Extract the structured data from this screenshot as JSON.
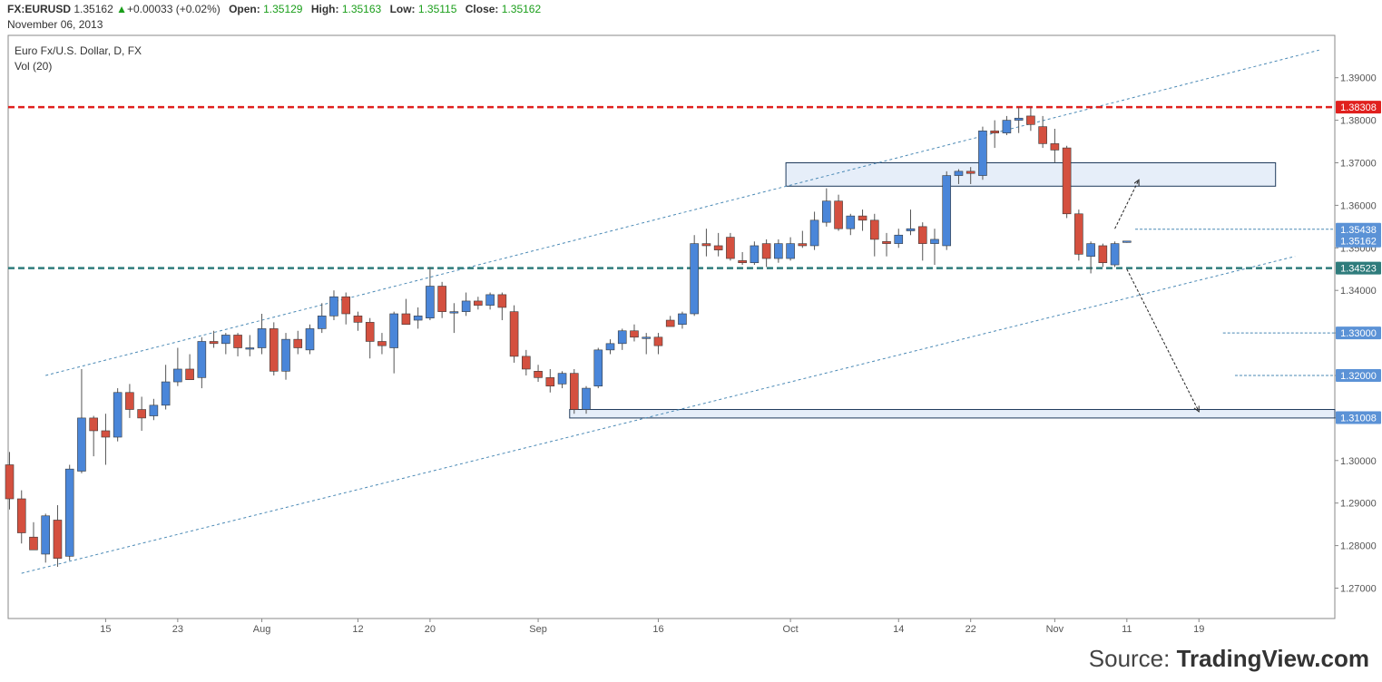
{
  "header": {
    "symbol": "FX:EURUSD",
    "last": "1.35162",
    "change": "+0.00033 (+0.02%)",
    "open_label": "Open:",
    "open": "1.35129",
    "high_label": "High:",
    "high": "1.35163",
    "low_label": "Low:",
    "low": "1.35115",
    "close_label": "Close:",
    "close": "1.35162",
    "date": "November 06, 2013"
  },
  "pane": {
    "title": "Euro Fx/U.S. Dollar, D, FX",
    "indicator": "Vol (20)"
  },
  "source": {
    "prefix": "Source: ",
    "brand": "TradingView.com"
  },
  "colors": {
    "up": "#4a86d9",
    "down": "#d4503f",
    "resistance": "#e0201e",
    "support": "#2f7c7c",
    "channel": "#4a89b5",
    "zone_fill": "#e6eef9",
    "zone_stroke": "#1f3a5c",
    "tag_blue": "#5b92d6"
  },
  "chart_data": {
    "type": "candlestick",
    "title": "Euro Fx/U.S. Dollar, D, FX",
    "ylim": [
      1.262,
      1.397
    ],
    "y_ticks": [
      "1.27000",
      "1.28000",
      "1.29000",
      "1.30000",
      "1.31000",
      "1.32000",
      "1.33000",
      "1.34000",
      "1.35000",
      "1.36000",
      "1.37000",
      "1.38000",
      "1.39000"
    ],
    "x_ticks": [
      {
        "label": "15",
        "i": 8
      },
      {
        "label": "23",
        "i": 14
      },
      {
        "label": "Aug",
        "i": 21
      },
      {
        "label": "12",
        "i": 29
      },
      {
        "label": "20",
        "i": 35
      },
      {
        "label": "Sep",
        "i": 44
      },
      {
        "label": "16",
        "i": 54
      },
      {
        "label": "Oct",
        "i": 65
      },
      {
        "label": "14",
        "i": 74
      },
      {
        "label": "22",
        "i": 80
      },
      {
        "label": "Nov",
        "i": 87
      },
      {
        "label": "11",
        "i": 93
      },
      {
        "label": "19",
        "i": 99
      }
    ],
    "candles": [
      [
        1.299,
        1.302,
        1.2885,
        1.291
      ],
      [
        1.291,
        1.293,
        1.2805,
        1.283
      ],
      [
        1.282,
        1.2855,
        1.28,
        1.279
      ],
      [
        1.278,
        1.2875,
        1.276,
        1.287
      ],
      [
        1.286,
        1.2895,
        1.275,
        1.277
      ],
      [
        1.2775,
        1.299,
        1.2765,
        1.298
      ],
      [
        1.2975,
        1.3215,
        1.297,
        1.31
      ],
      [
        1.31,
        1.3105,
        1.301,
        1.307
      ],
      [
        1.307,
        1.311,
        1.299,
        1.3055
      ],
      [
        1.3055,
        1.317,
        1.3045,
        1.316
      ],
      [
        1.316,
        1.318,
        1.31,
        1.312
      ],
      [
        1.312,
        1.315,
        1.307,
        1.31
      ],
      [
        1.3105,
        1.3145,
        1.3095,
        1.313
      ],
      [
        1.313,
        1.3225,
        1.312,
        1.3185
      ],
      [
        1.3185,
        1.3265,
        1.3175,
        1.3215
      ],
      [
        1.3215,
        1.325,
        1.32,
        1.319
      ],
      [
        1.3195,
        1.329,
        1.317,
        1.328
      ],
      [
        1.328,
        1.3305,
        1.3265,
        1.3275
      ],
      [
        1.3275,
        1.33,
        1.325,
        1.3295
      ],
      [
        1.3295,
        1.33,
        1.3245,
        1.3265
      ],
      [
        1.3265,
        1.3295,
        1.3245,
        1.3265
      ],
      [
        1.3265,
        1.3345,
        1.325,
        1.331
      ],
      [
        1.331,
        1.3325,
        1.32,
        1.321
      ],
      [
        1.321,
        1.33,
        1.319,
        1.3285
      ],
      [
        1.3285,
        1.3305,
        1.325,
        1.3265
      ],
      [
        1.326,
        1.332,
        1.325,
        1.331
      ],
      [
        1.331,
        1.337,
        1.33,
        1.334
      ],
      [
        1.334,
        1.34,
        1.333,
        1.3385
      ],
      [
        1.3385,
        1.3395,
        1.332,
        1.3345
      ],
      [
        1.334,
        1.335,
        1.3305,
        1.3325
      ],
      [
        1.3325,
        1.3335,
        1.324,
        1.328
      ],
      [
        1.328,
        1.33,
        1.325,
        1.327
      ],
      [
        1.3265,
        1.335,
        1.3205,
        1.3345
      ],
      [
        1.3345,
        1.338,
        1.3325,
        1.332
      ],
      [
        1.333,
        1.336,
        1.331,
        1.334
      ],
      [
        1.3335,
        1.3455,
        1.333,
        1.341
      ],
      [
        1.341,
        1.342,
        1.3335,
        1.335
      ],
      [
        1.335,
        1.337,
        1.33,
        1.335
      ],
      [
        1.335,
        1.3395,
        1.334,
        1.3375
      ],
      [
        1.3375,
        1.3385,
        1.3355,
        1.3365
      ],
      [
        1.3365,
        1.3395,
        1.3355,
        1.339
      ],
      [
        1.339,
        1.3395,
        1.333,
        1.336
      ],
      [
        1.335,
        1.3365,
        1.323,
        1.3245
      ],
      [
        1.3245,
        1.326,
        1.32,
        1.3215
      ],
      [
        1.321,
        1.3225,
        1.3185,
        1.3195
      ],
      [
        1.3195,
        1.3215,
        1.316,
        1.3175
      ],
      [
        1.318,
        1.321,
        1.317,
        1.3205
      ],
      [
        1.3205,
        1.3215,
        1.311,
        1.312
      ],
      [
        1.312,
        1.3175,
        1.311,
        1.317
      ],
      [
        1.3175,
        1.3265,
        1.317,
        1.326
      ],
      [
        1.326,
        1.3285,
        1.325,
        1.3275
      ],
      [
        1.3275,
        1.331,
        1.326,
        1.3305
      ],
      [
        1.3305,
        1.332,
        1.328,
        1.329
      ],
      [
        1.329,
        1.33,
        1.325,
        1.329
      ],
      [
        1.329,
        1.33,
        1.325,
        1.327
      ],
      [
        1.333,
        1.334,
        1.332,
        1.3315
      ],
      [
        1.332,
        1.335,
        1.331,
        1.3345
      ],
      [
        1.3345,
        1.353,
        1.334,
        1.351
      ],
      [
        1.351,
        1.3545,
        1.348,
        1.3505
      ],
      [
        1.3505,
        1.3535,
        1.348,
        1.3495
      ],
      [
        1.3525,
        1.3535,
        1.347,
        1.3475
      ],
      [
        1.347,
        1.349,
        1.346,
        1.3465
      ],
      [
        1.3465,
        1.3515,
        1.346,
        1.3505
      ],
      [
        1.351,
        1.352,
        1.3455,
        1.3475
      ],
      [
        1.3475,
        1.352,
        1.3465,
        1.351
      ],
      [
        1.3475,
        1.3525,
        1.347,
        1.351
      ],
      [
        1.351,
        1.354,
        1.35,
        1.3505
      ],
      [
        1.3505,
        1.3585,
        1.3495,
        1.3565
      ],
      [
        1.356,
        1.364,
        1.355,
        1.361
      ],
      [
        1.361,
        1.3625,
        1.354,
        1.3545
      ],
      [
        1.3545,
        1.358,
        1.353,
        1.3575
      ],
      [
        1.3575,
        1.359,
        1.354,
        1.3565
      ],
      [
        1.3565,
        1.358,
        1.348,
        1.352
      ],
      [
        1.3515,
        1.3535,
        1.348,
        1.351
      ],
      [
        1.351,
        1.3545,
        1.35,
        1.353
      ],
      [
        1.354,
        1.359,
        1.353,
        1.3545
      ],
      [
        1.355,
        1.356,
        1.347,
        1.351
      ],
      [
        1.351,
        1.3545,
        1.346,
        1.352
      ],
      [
        1.3505,
        1.368,
        1.3495,
        1.367
      ],
      [
        1.367,
        1.3685,
        1.365,
        1.368
      ],
      [
        1.368,
        1.369,
        1.365,
        1.3675
      ],
      [
        1.367,
        1.3785,
        1.366,
        1.3775
      ],
      [
        1.3775,
        1.38,
        1.3735,
        1.377
      ],
      [
        1.377,
        1.381,
        1.3765,
        1.38
      ],
      [
        1.38,
        1.383,
        1.377,
        1.3805
      ],
      [
        1.381,
        1.383,
        1.3775,
        1.379
      ],
      [
        1.3785,
        1.381,
        1.3735,
        1.3745
      ],
      [
        1.3745,
        1.378,
        1.37,
        1.373
      ],
      [
        1.3735,
        1.374,
        1.357,
        1.358
      ],
      [
        1.358,
        1.359,
        1.347,
        1.3485
      ],
      [
        1.348,
        1.3515,
        1.344,
        1.351
      ],
      [
        1.3505,
        1.351,
        1.3455,
        1.3465
      ],
      [
        1.346,
        1.3515,
        1.3455,
        1.351
      ],
      [
        1.3513,
        1.3516,
        1.3512,
        1.3516
      ]
    ]
  },
  "levels": [
    {
      "name": "resistance",
      "value": 1.38308,
      "label": "1.38308"
    },
    {
      "name": "high-mark",
      "value": 1.35438,
      "label": "1.35438"
    },
    {
      "name": "last-price",
      "value": 1.35162,
      "label": "1.35162"
    },
    {
      "name": "support",
      "value": 1.34523,
      "label": "1.34523"
    },
    {
      "name": "target-1",
      "value": 1.33,
      "label": "1.33000"
    },
    {
      "name": "target-2",
      "value": 1.32,
      "label": "1.32000"
    },
    {
      "name": "target-3",
      "value": 1.31008,
      "label": "1.31008"
    }
  ],
  "zones": [
    {
      "name": "upper-zone",
      "top": 1.37,
      "bottom": 1.3645,
      "from_i": 65,
      "to_i": 105
    },
    {
      "name": "lower-zone",
      "top": 1.312,
      "bottom": 1.31,
      "from_i": 47,
      "to_i": 111
    }
  ],
  "channel": {
    "upper": {
      "from_i": 3,
      "from_v": 1.32,
      "to_i": 109,
      "to_v": 1.3965
    },
    "lower": {
      "from_i": 1,
      "from_v": 1.2735,
      "to_i": 107,
      "to_v": 1.348
    }
  },
  "arrows": [
    {
      "name": "up-arrow",
      "from_i": 92,
      "from_v": 1.3545,
      "to_i": 94,
      "to_v": 1.366
    },
    {
      "name": "down-arrow",
      "from_i": 93,
      "from_v": 1.345,
      "to_i": 99,
      "to_v": 1.3115
    }
  ]
}
